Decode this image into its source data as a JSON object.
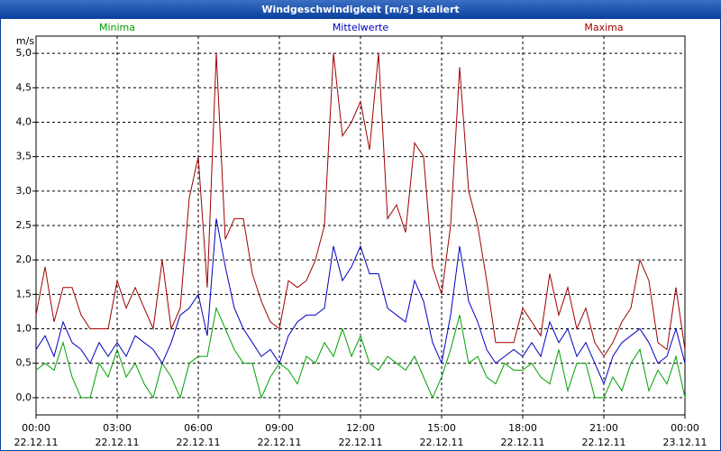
{
  "chart_data": {
    "type": "line",
    "title": "Windgeschwindigkeit [m/s] skaliert",
    "ylabel": "m/s",
    "grid": true,
    "legend": "top",
    "x": [
      "22.12.11 00:00",
      "22.12.11 00:20",
      "22.12.11 00:40",
      "22.12.11 01:00",
      "22.12.11 01:20",
      "22.12.11 01:40",
      "22.12.11 02:00",
      "22.12.11 02:20",
      "22.12.11 02:40",
      "22.12.11 03:00",
      "22.12.11 03:20",
      "22.12.11 03:40",
      "22.12.11 04:00",
      "22.12.11 04:20",
      "22.12.11 04:40",
      "22.12.11 05:00",
      "22.12.11 05:20",
      "22.12.11 05:40",
      "22.12.11 06:00",
      "22.12.11 06:20",
      "22.12.11 06:40",
      "22.12.11 07:00",
      "22.12.11 07:20",
      "22.12.11 07:40",
      "22.12.11 08:00",
      "22.12.11 08:20",
      "22.12.11 08:40",
      "22.12.11 09:00",
      "22.12.11 09:20",
      "22.12.11 09:40",
      "22.12.11 10:00",
      "22.12.11 10:20",
      "22.12.11 10:40",
      "22.12.11 11:00",
      "22.12.11 11:20",
      "22.12.11 11:40",
      "22.12.11 12:00",
      "22.12.11 12:20",
      "22.12.11 12:40",
      "22.12.11 13:00",
      "22.12.11 13:20",
      "22.12.11 13:40",
      "22.12.11 14:00",
      "22.12.11 14:20",
      "22.12.11 14:40",
      "22.12.11 15:00",
      "22.12.11 15:20",
      "22.12.11 15:40",
      "22.12.11 16:00",
      "22.12.11 16:20",
      "22.12.11 16:40",
      "22.12.11 17:00",
      "22.12.11 17:20",
      "22.12.11 17:40",
      "22.12.11 18:00",
      "22.12.11 18:20",
      "22.12.11 18:40",
      "22.12.11 19:00",
      "22.12.11 19:20",
      "22.12.11 19:40",
      "22.12.11 20:00",
      "22.12.11 20:20",
      "22.12.11 20:40",
      "22.12.11 21:00",
      "22.12.11 21:20",
      "22.12.11 21:40",
      "22.12.11 22:00",
      "22.12.11 22:20",
      "22.12.11 22:40",
      "22.12.11 23:00",
      "22.12.11 23:20",
      "22.12.11 23:40",
      "23.12.11 00:00"
    ],
    "series": [
      {
        "name": "Minima",
        "color": "#00a000",
        "values": [
          0.4,
          0.5,
          0.4,
          0.8,
          0.3,
          0.0,
          0.0,
          0.5,
          0.3,
          0.7,
          0.3,
          0.5,
          0.2,
          0.0,
          0.5,
          0.3,
          0.0,
          0.5,
          0.6,
          0.6,
          1.3,
          1.0,
          0.7,
          0.5,
          0.5,
          0.0,
          0.3,
          0.5,
          0.4,
          0.2,
          0.6,
          0.5,
          0.8,
          0.6,
          1.0,
          0.6,
          0.9,
          0.5,
          0.4,
          0.6,
          0.5,
          0.4,
          0.6,
          0.3,
          0.0,
          0.3,
          0.7,
          1.2,
          0.5,
          0.6,
          0.3,
          0.2,
          0.5,
          0.4,
          0.4,
          0.5,
          0.3,
          0.2,
          0.7,
          0.1,
          0.5,
          0.5,
          0.0,
          0.0,
          0.3,
          0.1,
          0.5,
          0.7,
          0.1,
          0.4,
          0.2,
          0.6,
          0.0
        ]
      },
      {
        "name": "Mittelwerte",
        "color": "#0000c0",
        "values": [
          0.7,
          0.9,
          0.6,
          1.1,
          0.8,
          0.7,
          0.5,
          0.8,
          0.6,
          0.8,
          0.6,
          0.9,
          0.8,
          0.7,
          0.5,
          0.8,
          1.2,
          1.3,
          1.5,
          0.9,
          2.6,
          1.9,
          1.3,
          1.0,
          0.8,
          0.6,
          0.7,
          0.5,
          0.9,
          1.1,
          1.2,
          1.2,
          1.3,
          2.2,
          1.7,
          1.9,
          2.2,
          1.8,
          1.8,
          1.3,
          1.2,
          1.1,
          1.7,
          1.4,
          0.8,
          0.5,
          1.2,
          2.2,
          1.4,
          1.1,
          0.7,
          0.5,
          0.6,
          0.7,
          0.6,
          0.8,
          0.6,
          1.1,
          0.8,
          1.0,
          0.6,
          0.8,
          0.5,
          0.2,
          0.6,
          0.8,
          0.9,
          1.0,
          0.8,
          0.5,
          0.6,
          1.0,
          0.5
        ]
      },
      {
        "name": "Maxima",
        "color": "#a00000",
        "values": [
          1.2,
          1.9,
          1.1,
          1.6,
          1.6,
          1.2,
          1.0,
          1.0,
          1.0,
          1.7,
          1.3,
          1.6,
          1.3,
          1.0,
          2.0,
          1.0,
          1.3,
          2.9,
          3.5,
          1.6,
          5.0,
          2.3,
          2.6,
          2.6,
          1.8,
          1.4,
          1.1,
          1.0,
          1.7,
          1.6,
          1.7,
          2.0,
          2.5,
          5.0,
          3.8,
          4.0,
          4.3,
          3.6,
          5.0,
          2.6,
          2.8,
          2.4,
          3.7,
          3.5,
          1.9,
          1.5,
          2.5,
          4.8,
          3.0,
          2.5,
          1.7,
          0.8,
          0.8,
          0.8,
          1.3,
          1.1,
          0.9,
          1.8,
          1.2,
          1.6,
          1.0,
          1.3,
          0.8,
          0.6,
          0.8,
          1.1,
          1.3,
          2.0,
          1.7,
          0.8,
          0.7,
          1.6,
          0.7
        ]
      }
    ],
    "xlim": [
      "22.12.11 00:00",
      "23.12.11 00:00"
    ],
    "xticks": [
      {
        "value": "22.12.11 00:00",
        "label": [
          "00:00",
          "22.12.11"
        ]
      },
      {
        "value": "22.12.11 03:00",
        "label": [
          "03:00",
          "22.12.11"
        ]
      },
      {
        "value": "22.12.11 06:00",
        "label": [
          "06:00",
          "22.12.11"
        ]
      },
      {
        "value": "22.12.11 09:00",
        "label": [
          "09:00",
          "22.12.11"
        ]
      },
      {
        "value": "22.12.11 12:00",
        "label": [
          "12:00",
          "22.12.11"
        ]
      },
      {
        "value": "22.12.11 15:00",
        "label": [
          "15:00",
          "22.12.11"
        ]
      },
      {
        "value": "22.12.11 18:00",
        "label": [
          "18:00",
          "22.12.11"
        ]
      },
      {
        "value": "22.12.11 21:00",
        "label": [
          "21:00",
          "22.12.11"
        ]
      },
      {
        "value": "23.12.11 00:00",
        "label": [
          "00:00",
          "23.12.11"
        ]
      }
    ],
    "ylim": [
      -0.25,
      5.25
    ],
    "yticks": [
      {
        "value": 0,
        "label": "0,0"
      },
      {
        "value": 0.5,
        "label": "0,5"
      },
      {
        "value": 1,
        "label": "1,0"
      },
      {
        "value": 1.5,
        "label": "1,5"
      },
      {
        "value": 2,
        "label": "2,0"
      },
      {
        "value": 2.5,
        "label": "2,5"
      },
      {
        "value": 3,
        "label": "3,0"
      },
      {
        "value": 3.5,
        "label": "3,5"
      },
      {
        "value": 4,
        "label": "4,0"
      },
      {
        "value": 4.5,
        "label": "4,5"
      },
      {
        "value": 5,
        "label": "5,0"
      }
    ]
  }
}
